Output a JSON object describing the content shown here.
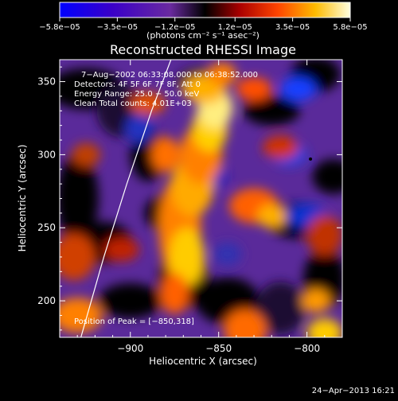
{
  "colorbar": {
    "ticks": [
      "−5.8e−05",
      "−3.5e−05",
      "−1.2e−05",
      "1.2e−05",
      "3.5e−05",
      "5.8e−05"
    ],
    "tick_values": [
      -5.8e-05,
      -3.5e-05,
      -1.2e-05,
      1.2e-05,
      3.5e-05,
      5.8e-05
    ],
    "unit_label": "(photons cm⁻² s⁻¹ asec⁻²)",
    "range": [
      -5.8e-05,
      5.8e-05
    ]
  },
  "title": "Reconstructed RHESSI Image",
  "annotations": {
    "line1": "7−Aug−2002 06:33:08.000 to 06:38:52.000",
    "line2": "Detectors: 4F 5F 6F 7F 8F, Att 0",
    "line3": "Energy Range: 25.0 − 50.0 keV",
    "line4": "Clean     Total counts: 4.01E+03",
    "peak": "Position of Peak = [−850,318]"
  },
  "footer": {
    "timestamp": "24−Apr−2013 16:21"
  },
  "chart_data": {
    "type": "heatmap",
    "title": "Reconstructed RHESSI Image",
    "xlabel": "Heliocentric X (arcsec)",
    "ylabel": "Heliocentric Y (arcsec)",
    "xlim": [
      -940,
      -780
    ],
    "ylim": [
      175,
      365
    ],
    "xticks": [
      -900,
      -850,
      -800
    ],
    "xtick_labels": [
      "−900",
      "−850",
      "−800"
    ],
    "yticks": [
      200,
      250,
      300,
      350
    ],
    "ytick_labels": [
      "200",
      "250",
      "300",
      "350"
    ],
    "peak": [
      -850,
      318
    ],
    "limb_curve": [
      [
        -928,
        175
      ],
      [
        -915,
        230
      ],
      [
        -902,
        280
      ],
      [
        -888,
        330
      ],
      [
        -877,
        365
      ]
    ],
    "min_marker": [
      -798,
      297
    ]
  }
}
